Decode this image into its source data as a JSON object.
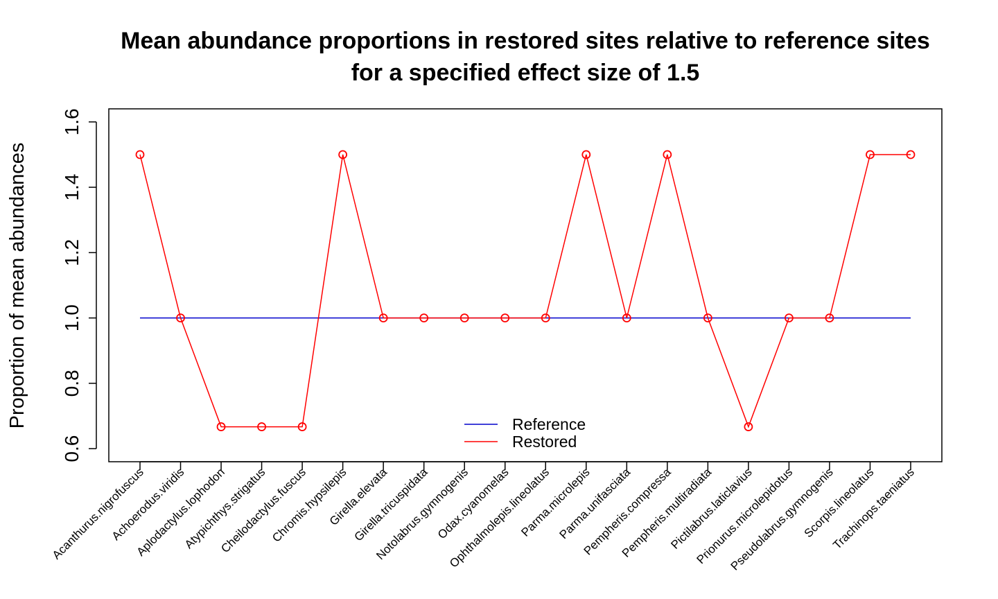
{
  "chart_data": {
    "type": "line",
    "title": "Mean abundance proportions in restored sites relative to reference sites",
    "subtitle": "for a specified effect size of 1.5",
    "xlabel": "",
    "ylabel": "Proportion of mean abundances",
    "ylim": [
      0.56,
      1.64
    ],
    "yticks": [
      0.6,
      0.8,
      1.0,
      1.2,
      1.4,
      1.6
    ],
    "ytick_labels": [
      "0.6",
      "0.8",
      "1.0",
      "1.2",
      "1.4",
      "1.6"
    ],
    "categories": [
      "Acanthurus.nigrofuscus",
      "Achoerodus.viridis",
      "Aplodactylus.lophodon",
      "Atypichthys.strigatus",
      "Cheilodactylus.fuscus",
      "Chromis.hypsilepis",
      "Girella.elevata",
      "Girella.tricuspidata",
      "Notolabrus.gymnogenis",
      "Odax.cyanomelas",
      "Ophthalmolepis.lineolatus",
      "Parma.microlepis",
      "Parma.unifasciata",
      "Pempheris.compressa",
      "Pempheris.multiradiata",
      "Pictilabrus.laticlavius",
      "Prionurus.microlepidotus",
      "Pseudolabrus.gymnogenis",
      "Scorpis.lineolatus",
      "Trachinops.taeniatus"
    ],
    "series": [
      {
        "name": "Reference",
        "color": "#0000cc",
        "markers": false,
        "values": [
          1,
          1,
          1,
          1,
          1,
          1,
          1,
          1,
          1,
          1,
          1,
          1,
          1,
          1,
          1,
          1,
          1,
          1,
          1,
          1
        ]
      },
      {
        "name": "Restored",
        "color": "#ff0000",
        "markers": true,
        "values": [
          1.5,
          1.0,
          0.667,
          0.667,
          0.667,
          1.5,
          1.0,
          1.0,
          1.0,
          1.0,
          1.0,
          1.5,
          1.0,
          1.5,
          1.0,
          0.667,
          1.0,
          1.0,
          1.5,
          1.5
        ]
      }
    ],
    "grid": false,
    "legend_position": "bottom-center"
  }
}
